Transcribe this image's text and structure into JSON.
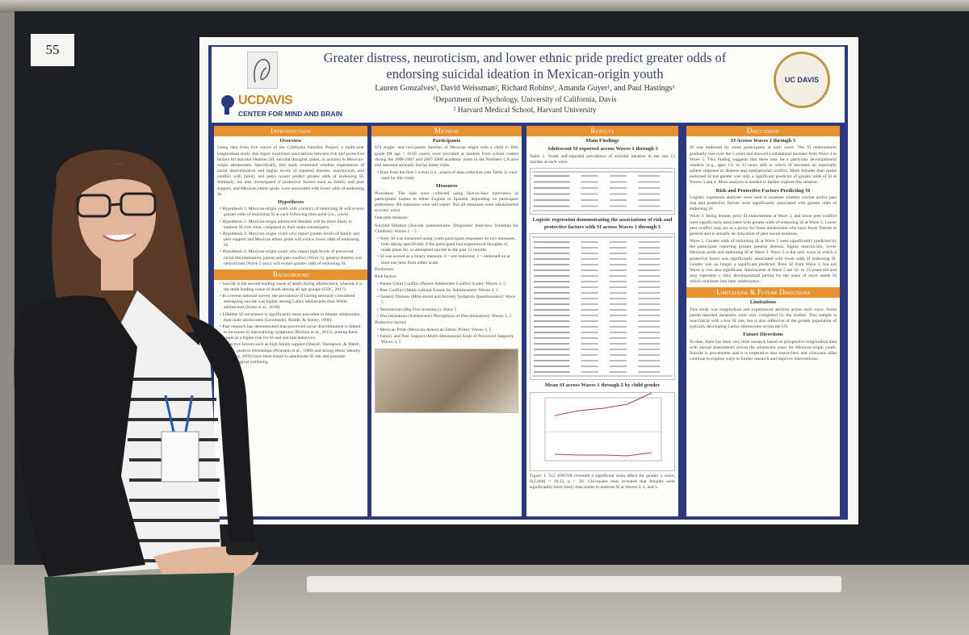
{
  "number": "55",
  "header": {
    "title": "Greater distress, neuroticism, and lower ethnic pride predict greater odds of endorsing suicidal ideation in Mexican-origin youth",
    "authors": "Lauren Gonzalves¹, David Weissman², Richard Robins¹, Amanda Guyer¹, and Paul Hastings¹",
    "affiliations": [
      "¹Department of Psychology, University of California, Davis",
      "² Harvard Medical School, Harvard University"
    ],
    "brand": "UCDAVIS",
    "center": "CENTER FOR MIND AND BRAIN",
    "seal": "UC DAVIS"
  },
  "columns": [
    {
      "heading": "Introduction",
      "blocks": [
        {
          "subheading": "Overview"
        },
        {
          "text": "Using data from five waves of the California Families Project, a multi-year longitudinal study, this report examined associations between risk and protective factors for suicidal ideation (SI, suicidal thoughts, plans, or actions) in Mexican-origin adolescents. Specifically, this study examined whether experiences of racial discrimination and higher levels of reported distress, neuroticism, and conflict with family and peers would predict greater odds of endorsing SI. Similarly, we also investigated if protective factors such as family and peer support, and Mexican ethnic pride, were associated with lower odds of endorsing SI."
        },
        {
          "subheading": "Hypotheses"
        },
        {
          "bullet": "Hypothesis 1: Mexican-origin youth with a history of endorsing SI will evince greater odds of endorsing SI at each following time point (i.e., wave)."
        },
        {
          "bullet": "Hypothesis 2: Mexican-origin adolescent females will be more likely to endorse SI over time, compared to their male counterparts."
        },
        {
          "bullet": "Hypothesis 3: Mexican-origin youth who report greater levels of family and peer support and Mexican ethnic pride will evince lower odds of endorsing SI."
        },
        {
          "bullet": "Hypothesis 4: Mexican-origin youth who report high levels of perceived racial discrimination, parent and peer conflict (Wave 3), general distress and neuroticism (Wave 5 only) will evince greater odds of endorsing SI."
        },
        {
          "section": "Background"
        },
        {
          "bullet": "Suicide is the second leading cause of death during adolescence, whereas it is the tenth leading cause of death among all age groups (CDC, 2017)."
        },
        {
          "bullet": "In a recent national survey, the prevalence of having seriously considered attempting suicide was higher among Latinx adolescents than White adolescents (Kann et al., 2018)."
        },
        {
          "bullet": "Lifetime SI recurrence is significantly more prevalent in female adolescents, than male adolescents (Lewinsohn, Rohde, & Seeley, 1996)."
        },
        {
          "bullet": "Past research has demonstrated that perceived racial discrimination is linked to increases in internalizing symptoms (Brittian et al., 2015), putting these youth at a higher risk for SI and suicidal behaviors."
        },
        {
          "bullet": "Protective factors such as high family support (Sharaf, Thompson, & Walsh, 2009), positive friendships (Prinstein et al., 1989) and strong ethnic identity (Phinney, 1992) have been found to ameliorate SI risk and promote psychological wellbeing."
        }
      ]
    },
    {
      "heading": "Method",
      "blocks": [
        {
          "subheading": "Participants"
        },
        {
          "text": "674 single- and two-parent families of Mexican origin with a child in fifth grade (M age = 10.85 years) were recruited at random from school rosters during the 2006-2007 and 2007-2008 academic years in the Northern CA area and assessed annually during home visits."
        },
        {
          "bullet": "Data from the first 5 waves (i.e., years) of data collection (see Table 1) were used for this study."
        },
        {
          "subheading": "Measures"
        },
        {
          "text": "Procedure: The data were collected using face-to-face interviews in participants' homes in either English or Spanish, depending on participant preference. All measures were self-report. Not all measures were administered at every wave."
        },
        {
          "text": "Outcome measure:"
        },
        {
          "text": "Suicidal Ideation (Suicide questionnaire; Diagnostic Interview Schedule for Children): Waves 1 – 5"
        },
        {
          "bullet": "Note: SI was measured using youth participant responses on two measures, both asking specifically if the participant had experienced thoughts of, made plans for, or attempted suicide in the past 12 months"
        },
        {
          "bullet": "SI was scored as a binary measure: 0 = not endorsed, 1 = endorsed on at least one item from either scale."
        },
        {
          "text": "Predictors:"
        },
        {
          "text": "Risk factors"
        },
        {
          "bullet": "Parent-Child Conflict (Parent-Adolescent Conflict Scale): Waves 3, 5"
        },
        {
          "bullet": "Peer Conflict (Multi-cultural Events for Adolescents): Waves 3, 5"
        },
        {
          "bullet": "General Distress (Mini-mood and Anxiety Symptom Questionnaire): Wave 5"
        },
        {
          "bullet": "Neuroticism (Big Five Inventory): Wave 5"
        },
        {
          "bullet": "Discrimination (Adolescent's Perceptions of Discrimination): Waves 3, 5"
        },
        {
          "text": "Protective factors"
        },
        {
          "bullet": "Mexican Pride (Mexican-American Ethnic Pride): Waves 3, 5"
        },
        {
          "bullet": "Family and Peer Support (Multi-dimensional Scale of Perceived Support): Waves 3, 5"
        }
      ]
    },
    {
      "heading": "Results",
      "blocks": [
        {
          "subheading": "Main Findings"
        },
        {
          "subheading": "Adolescent SI reported across Waves 1 through 5"
        },
        {
          "text": "Table 1. Youth self-reported prevalence of suicidal ideation in the last 12 months at each wave"
        },
        {
          "subheading": "Logistic regression demonstrating the associations of risk and protective factors with SI across Waves 1 through 5"
        },
        {
          "subheading": "Mean SI across Waves 1 through 5 by child gender"
        },
        {
          "text": "Figure 1. 5x2 ANOVA revealed a significant main effect for gender x wave, F(1,468) = 10.22, p < .01. Chi-square tests revealed that females were significantly more likely than males to endorse SI at Waves 3, 4, and 5."
        }
      ]
    },
    {
      "heading": "Discussion",
      "blocks": [
        {
          "subheading": "SI Across Waves 1 through 5"
        },
        {
          "text": "SI was endorsed by some participants at each wave. The SI endorsement gradually rose over the 5 years and showed a substantial increase from Wave 4 to Wave 5. This finding suggests that there may be a particular developmental window (e.g., ages 13- to 15-years old) in which SI becomes an especially salient response to distress and interpersonal conflict. More females than males endorsed SI but gender was only a significant predictor of greater odds of SI at Waves 3 and 4. More analysis is needed to further explore this relation."
        },
        {
          "subheading": "Risk and Protective Factors Predicting SI"
        },
        {
          "text": "Logistic regression analyses were used to examine whether current and/or past risk and protective factors were significantly associated with greater odds of endorsing SI."
        },
        {
          "text": "Wave 3. Being female, prior SI endorsement at Wave 2, and lower peer conflict were significantly associated with greater odds of endorsing SI at Wave 3. Lower peer conflict may act as a proxy for those adolescents who have fewer friends in general and is actually an indication of peer social isolation."
        },
        {
          "text": "Wave 5. Greater odds of endorsing SI at Wave 5 were significantly predicted by the participant reporting greater general distress, higher neuroticism, lower Mexican pride and endorsing SI at Wave 3. Wave 5 is the only wave in which a protective factor was significantly associated with lower odds of endorsing SI. Gender was no longer a significant predictor. Prior SI from Wave 3, but not Wave 4, was also significant. Adolescents at Wave 5 are 12- to 15-years-old and may represent a risky developmental period for the onset of more stable SI which continues into later adolescence."
        },
        {
          "section": "Limitations & Future Directions"
        },
        {
          "subheading": "Limitations"
        },
        {
          "text": "This study was longitudinal and experienced attrition across each wave. Some parent-reported measures were only completed by the mother. This sample is nonclinical with a low SI rate, but is also reflective of the greater population of typically developing Latinx adolescents across the US."
        },
        {
          "subheading": "Future Directions"
        },
        {
          "text": "To date, there has been very little research based on prospective longitudinal data with annual assessments across the adolescent years for Mexican-origin youth. Suicide is preventable and it is imperative that researchers and clinicians alike continue to explore ways to further research and improve interventions."
        }
      ]
    }
  ]
}
